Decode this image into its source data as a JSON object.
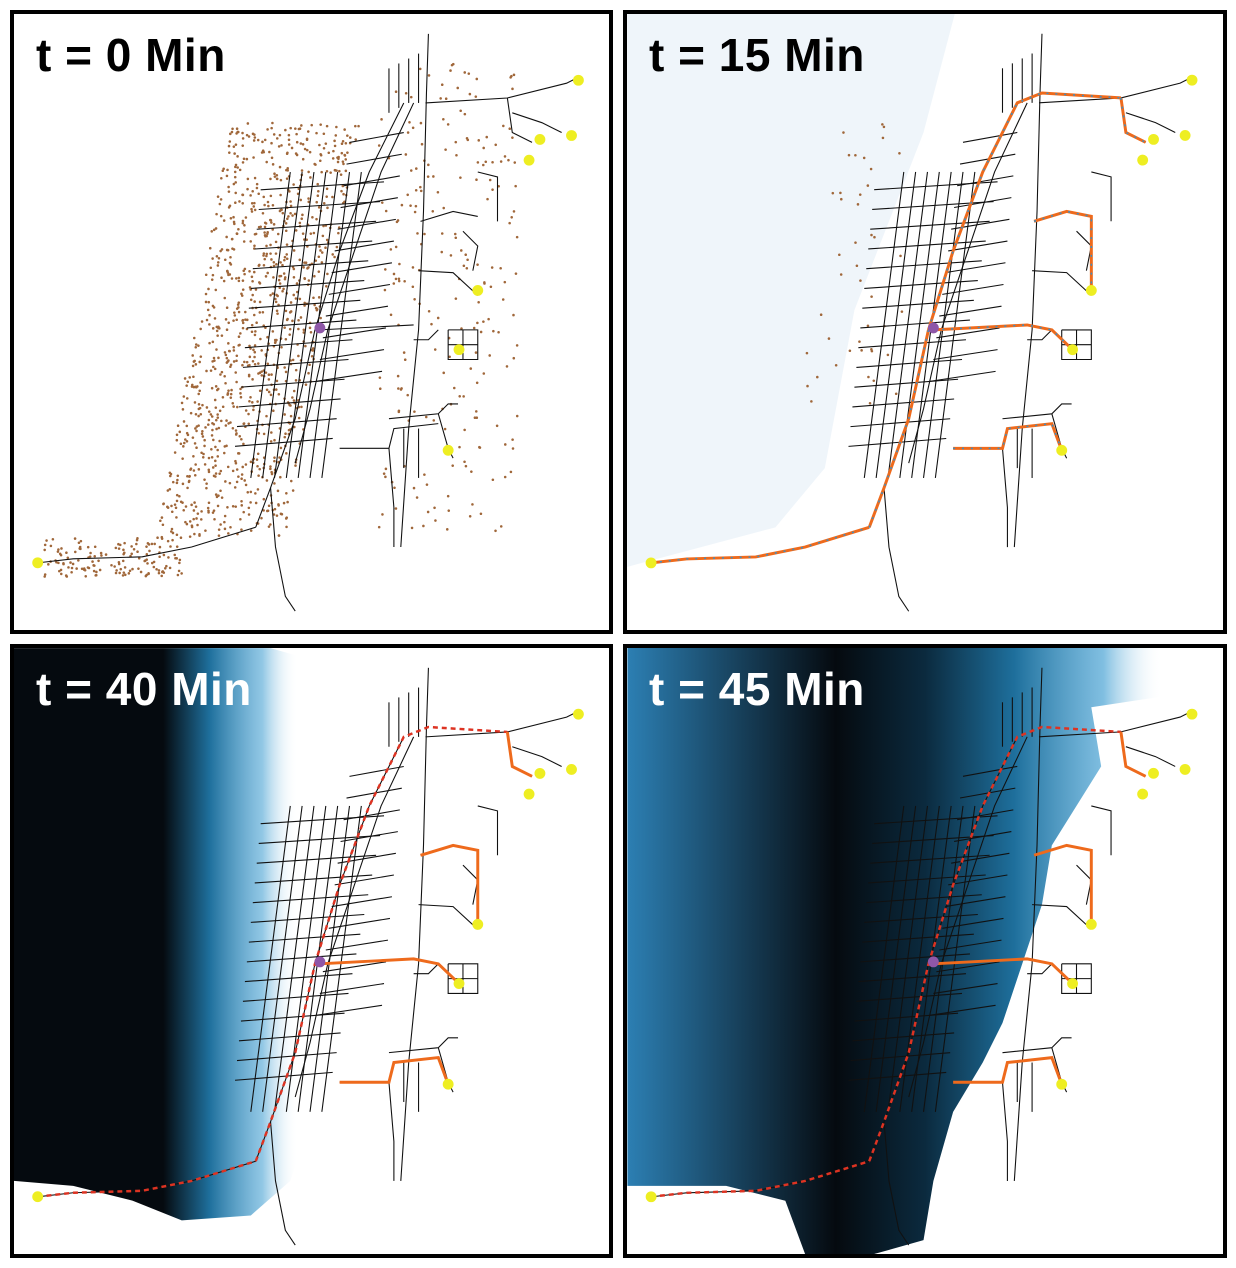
{
  "panels": [
    {
      "label": "t = 0 Min",
      "label_color": "#000000",
      "flood": "none"
    },
    {
      "label": "t = 15 Min",
      "label_color": "#000000",
      "flood": "trace"
    },
    {
      "label": "t = 40 Min",
      "label_color": "#ffffff",
      "flood": "deep"
    },
    {
      "label": "t = 45 Min",
      "label_color": "#ffffff",
      "flood": "widespread"
    }
  ],
  "legend_colors": {
    "road": "#111111",
    "population": "#a0673a",
    "shelter": "#eeee22",
    "origin": "#8e57a8",
    "evacuation_route": "#ee6a1c",
    "blocked_route": "#dd3322",
    "flow_marker": "#3a8fc4",
    "water_deep": "#050a0f",
    "water_mid": "#1e6f9c",
    "water_shallow": "#4aa3d4"
  }
}
